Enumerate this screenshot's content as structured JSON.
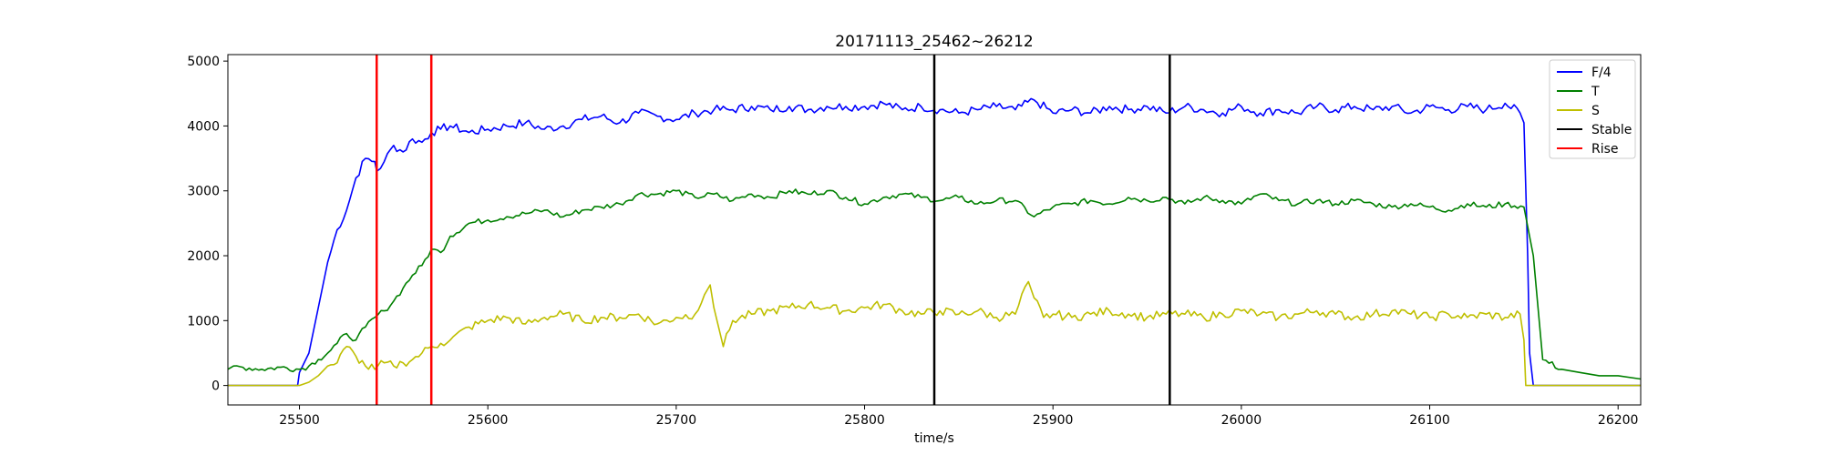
{
  "chart_data": {
    "type": "line",
    "title": "20171113_25462~26212",
    "xlabel": "time/s",
    "ylabel": "",
    "xlim": [
      25462,
      26212
    ],
    "ylim": [
      -300,
      5100
    ],
    "xticks": [
      25500,
      25600,
      25700,
      25800,
      25900,
      26000,
      26100,
      26200
    ],
    "yticks": [
      0,
      1000,
      2000,
      3000,
      4000,
      5000
    ],
    "grid": false,
    "legend": {
      "placement": "top-right",
      "entries": [
        "F/4",
        "T",
        "S",
        "Stable",
        "Rise"
      ]
    },
    "series": [
      {
        "name": "F/4",
        "color": "#0000ff",
        "x": [
          25462,
          25499,
          25500,
          25505,
          25510,
          25515,
          25520,
          25525,
          25530,
          25535,
          25540,
          25541,
          25545,
          25550,
          25555,
          25560,
          25565,
          25570,
          25575,
          25580,
          25590,
          25600,
          25610,
          25620,
          25630,
          25640,
          25650,
          25660,
          25670,
          25680,
          25690,
          25700,
          25710,
          25720,
          25730,
          25740,
          25750,
          25760,
          25770,
          25780,
          25790,
          25800,
          25810,
          25820,
          25830,
          25840,
          25850,
          25860,
          25870,
          25880,
          25890,
          25900,
          25910,
          25920,
          25930,
          25940,
          25950,
          25960,
          25970,
          25980,
          25990,
          26000,
          26010,
          26020,
          26030,
          26040,
          26050,
          26060,
          26070,
          26080,
          26090,
          26100,
          26110,
          26120,
          26130,
          26140,
          26148,
          26150,
          26152,
          26153,
          26155,
          26212
        ],
        "y": [
          0,
          0,
          200,
          500,
          1200,
          1900,
          2400,
          2700,
          3200,
          3500,
          3450,
          3300,
          3450,
          3700,
          3600,
          3800,
          3750,
          3900,
          3950,
          4000,
          3900,
          3950,
          4000,
          4050,
          3950,
          4000,
          4100,
          4150,
          4050,
          4200,
          4150,
          4100,
          4200,
          4250,
          4250,
          4300,
          4250,
          4300,
          4250,
          4300,
          4300,
          4300,
          4350,
          4250,
          4300,
          4250,
          4200,
          4250,
          4300,
          4250,
          4400,
          4200,
          4250,
          4200,
          4300,
          4250,
          4300,
          4200,
          4300,
          4250,
          4200,
          4300,
          4200,
          4250,
          4200,
          4300,
          4250,
          4300,
          4250,
          4300,
          4200,
          4300,
          4250,
          4300,
          4250,
          4350,
          4200,
          4050,
          2000,
          500,
          0,
          0
        ]
      },
      {
        "name": "T",
        "color": "#008000",
        "x": [
          25462,
          25465,
          25470,
          25480,
          25490,
          25500,
          25505,
          25510,
          25515,
          25520,
          25525,
          25530,
          25535,
          25540,
          25545,
          25550,
          25555,
          25560,
          25565,
          25570,
          25575,
          25580,
          25590,
          25600,
          25610,
          25620,
          25630,
          25640,
          25650,
          25660,
          25670,
          25680,
          25690,
          25700,
          25710,
          25720,
          25730,
          25740,
          25750,
          25760,
          25770,
          25780,
          25790,
          25800,
          25810,
          25820,
          25830,
          25840,
          25850,
          25860,
          25870,
          25880,
          25890,
          25900,
          25910,
          25920,
          25930,
          25940,
          25950,
          25960,
          25970,
          25980,
          25990,
          26000,
          26010,
          26020,
          26030,
          26040,
          26050,
          26060,
          26070,
          26080,
          26090,
          26100,
          26110,
          26120,
          26130,
          26140,
          26150,
          26155,
          26160,
          26170,
          26180,
          26190,
          26200,
          26212
        ],
        "y": [
          250,
          300,
          280,
          250,
          280,
          250,
          300,
          400,
          500,
          650,
          800,
          700,
          900,
          1050,
          1150,
          1300,
          1500,
          1700,
          1850,
          2100,
          2050,
          2300,
          2500,
          2550,
          2600,
          2650,
          2700,
          2600,
          2700,
          2750,
          2800,
          2950,
          2950,
          3000,
          2900,
          2950,
          2850,
          2950,
          2900,
          3000,
          2950,
          3000,
          2900,
          2800,
          2900,
          2950,
          2900,
          2850,
          2900,
          2800,
          2850,
          2850,
          2600,
          2750,
          2800,
          2850,
          2800,
          2900,
          2850,
          2900,
          2800,
          2900,
          2850,
          2800,
          2950,
          2850,
          2800,
          2850,
          2800,
          2850,
          2800,
          2750,
          2800,
          2750,
          2700,
          2800,
          2750,
          2800,
          2750,
          2000,
          400,
          250,
          200,
          150,
          150,
          100
        ]
      },
      {
        "name": "S",
        "color": "#bfbf00",
        "x": [
          25462,
          25500,
          25505,
          25510,
          25515,
          25520,
          25525,
          25530,
          25535,
          25540,
          25545,
          25550,
          25555,
          25560,
          25565,
          25570,
          25575,
          25580,
          25590,
          25600,
          25610,
          25620,
          25630,
          25640,
          25650,
          25660,
          25670,
          25680,
          25690,
          25700,
          25710,
          25715,
          25718,
          25720,
          25725,
          25730,
          25740,
          25750,
          25760,
          25770,
          25780,
          25790,
          25800,
          25810,
          25820,
          25830,
          25840,
          25850,
          25860,
          25870,
          25880,
          25887,
          25890,
          25895,
          25900,
          25910,
          25920,
          25930,
          25940,
          25950,
          25960,
          25970,
          25980,
          25990,
          26000,
          26010,
          26020,
          26030,
          26040,
          26050,
          26060,
          26070,
          26080,
          26090,
          26100,
          26110,
          26120,
          26130,
          26140,
          26148,
          26150,
          26151,
          26212
        ],
        "y": [
          0,
          0,
          50,
          150,
          300,
          350,
          600,
          450,
          300,
          250,
          350,
          300,
          350,
          400,
          500,
          600,
          650,
          700,
          900,
          1000,
          1050,
          950,
          1050,
          1100,
          1000,
          1050,
          1050,
          1100,
          950,
          1050,
          1100,
          1400,
          1550,
          1200,
          600,
          1000,
          1100,
          1150,
          1200,
          1250,
          1200,
          1150,
          1200,
          1250,
          1150,
          1100,
          1150,
          1100,
          1150,
          1050,
          1100,
          1600,
          1350,
          1050,
          1100,
          1050,
          1100,
          1150,
          1100,
          1050,
          1100,
          1100,
          1050,
          1100,
          1150,
          1100,
          1050,
          1100,
          1150,
          1100,
          1050,
          1100,
          1150,
          1100,
          1050,
          1100,
          1050,
          1100,
          1050,
          1100,
          700,
          0,
          0
        ]
      }
    ],
    "vlines": [
      {
        "name": "Stable",
        "color": "#000000",
        "x": [
          25837,
          25962
        ]
      },
      {
        "name": "Rise",
        "color": "#ff0000",
        "x": [
          25541,
          25570
        ]
      }
    ]
  }
}
